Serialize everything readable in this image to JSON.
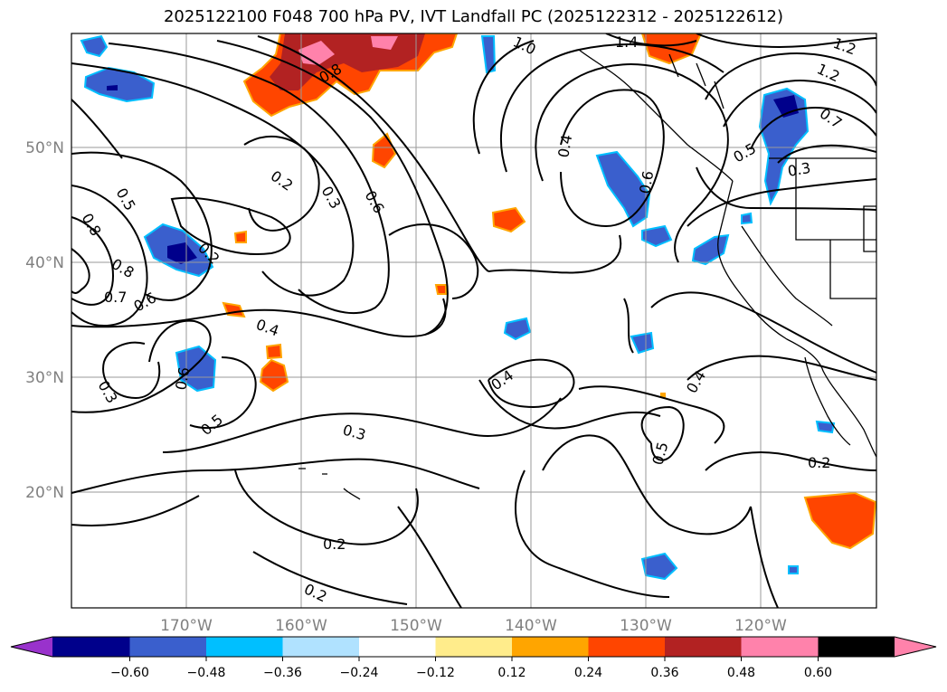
{
  "title": "2025122100 F048 700 hPa PV, IVT Landfall PC (2025122312 - 2025122612)",
  "axes": {
    "lat_labels": [
      "50°N",
      "40°N",
      "30°N",
      "20°N"
    ],
    "lon_labels": [
      "170°W",
      "160°W",
      "150°W",
      "140°W",
      "130°W",
      "120°W"
    ]
  },
  "contour_labels": [
    "0.2",
    "0.3",
    "0.6",
    "0.5",
    "0.8",
    "0.7",
    "0.6",
    "0.8",
    "0.2",
    "0.4",
    "0.6",
    "0.5",
    "0.3",
    "0.2",
    "0.2",
    "0.4",
    "0.4",
    "0.5",
    "0.2",
    "0.4",
    "0.6",
    "0.5",
    "0.3",
    "1.0",
    "1.4",
    "1.2",
    "1.2",
    "0.7",
    "0.3",
    "0.8"
  ],
  "colorbar": {
    "ticks": [
      "−0.60",
      "−0.48",
      "−0.36",
      "−0.24",
      "−0.12",
      "0.12",
      "0.24",
      "0.36",
      "0.48",
      "0.60"
    ],
    "colors": [
      "#9932cc",
      "#00008b",
      "#3a5fcd",
      "#00bfff",
      "#b0e2ff",
      "#ffffff",
      "#ffec8b",
      "#ffa500",
      "#ff4500",
      "#b22222",
      "#ff82ab"
    ]
  }
}
